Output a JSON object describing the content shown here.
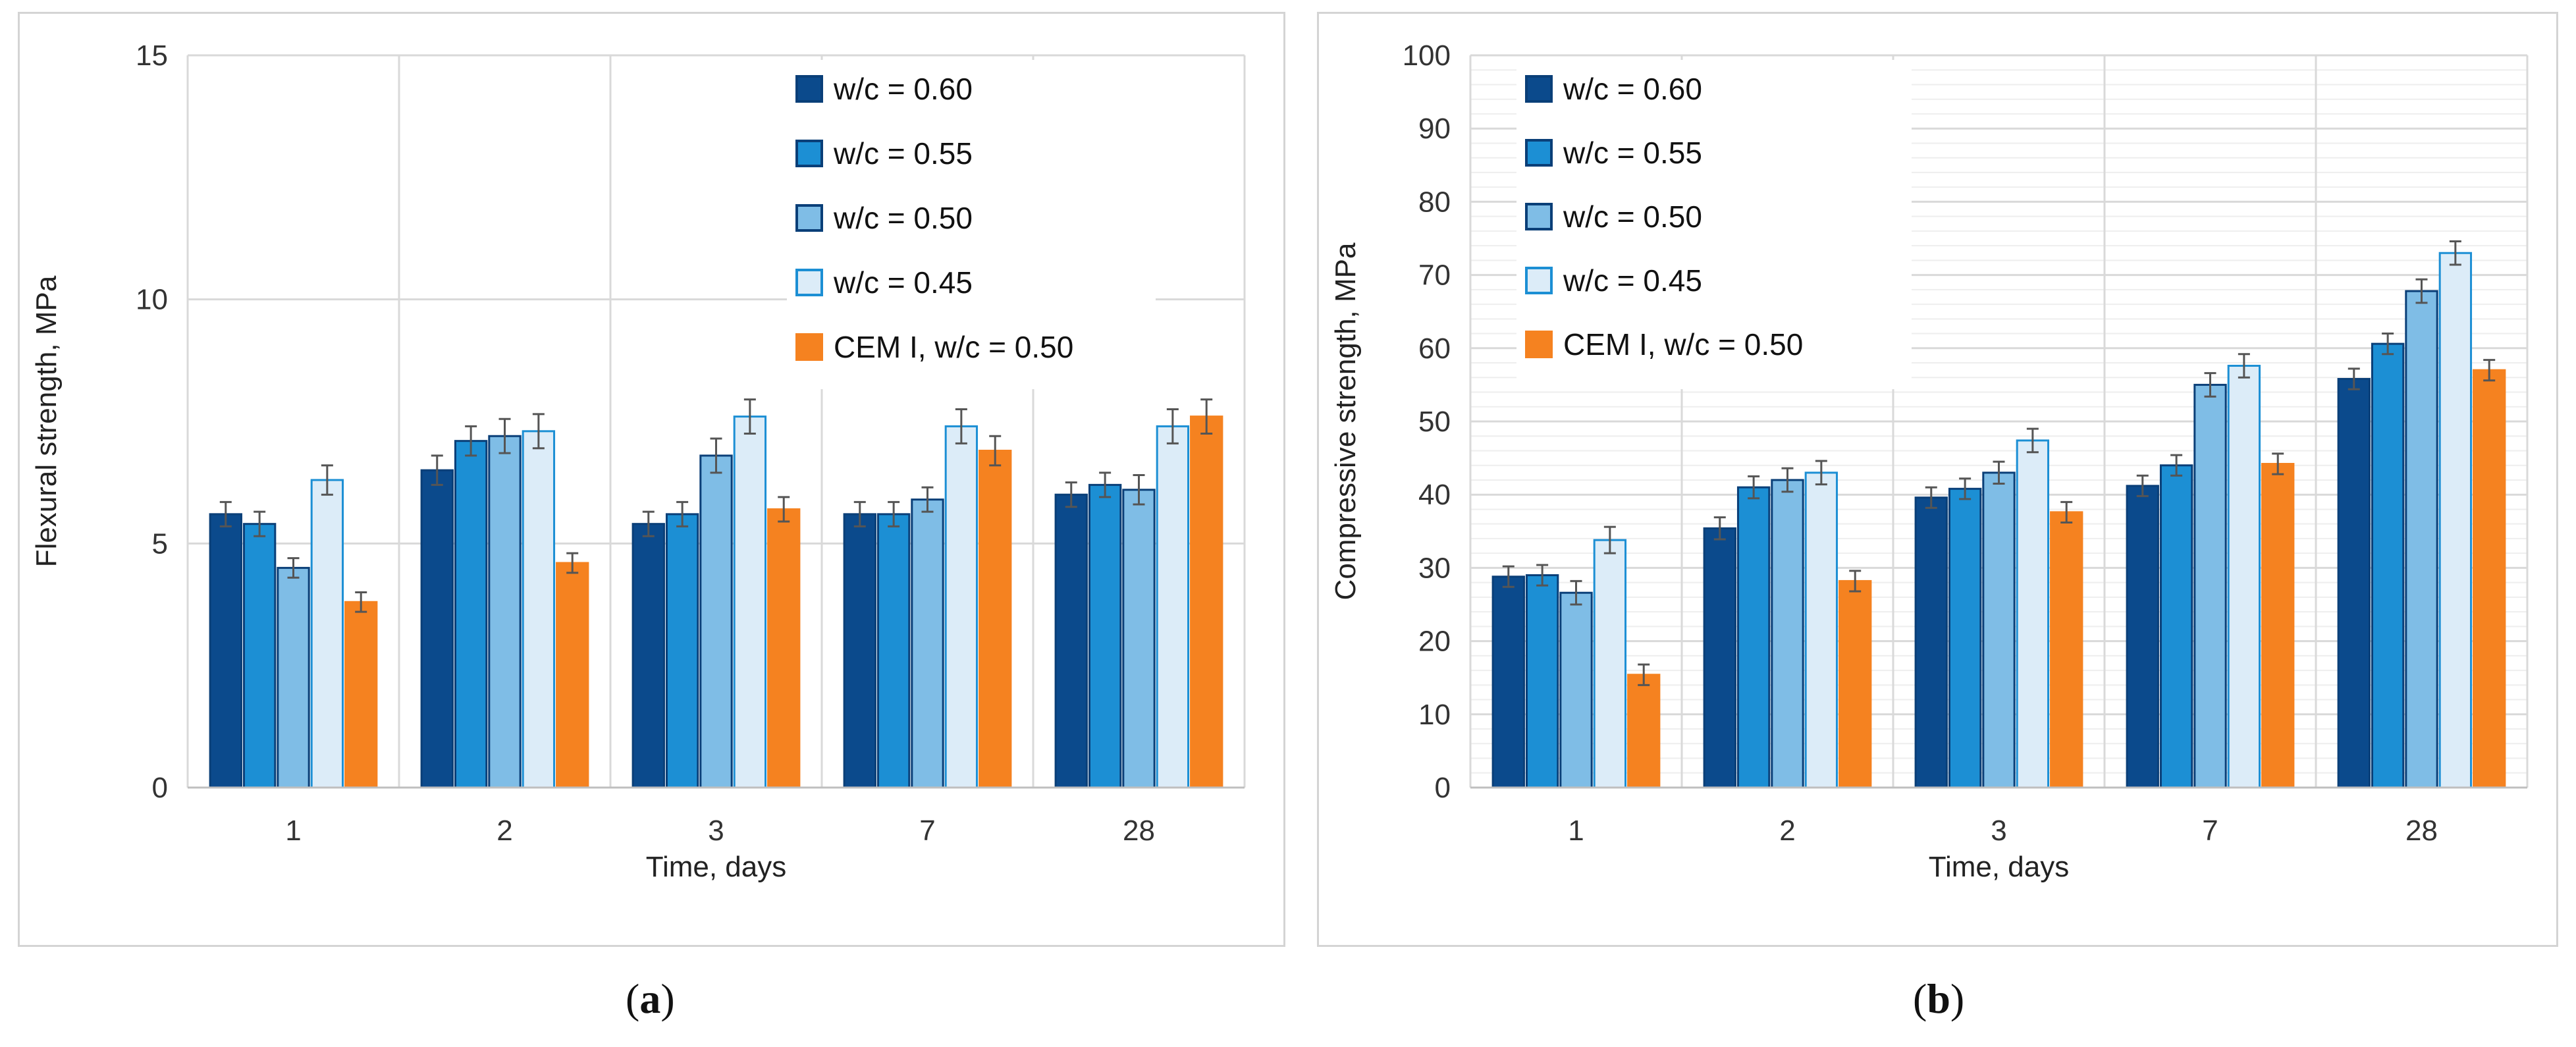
{
  "captions": {
    "a_open": "(",
    "a_letter": "a",
    "a_close": ")",
    "b_open": "(",
    "b_letter": "b",
    "b_close": ")"
  },
  "colors": {
    "w060": "#0b4a8c",
    "w055": "#1c8fd4",
    "w050": "#7fbde6",
    "w045": "#dcecf8",
    "cem": "#f58220",
    "grid": "#d9d9d9",
    "error": "#555555"
  },
  "chart_data": [
    {
      "id": "a",
      "type": "bar",
      "title": "",
      "xlabel": "Time, days",
      "ylabel": "Flexural strength, MPa",
      "categories": [
        "1",
        "2",
        "3",
        "7",
        "28"
      ],
      "ylim": [
        0,
        15
      ],
      "yticks": [
        "0",
        "5",
        "10",
        "15"
      ],
      "legend_position": "top-right",
      "series": [
        {
          "name": "w/c = 0.60",
          "color_key": "w060",
          "values": [
            5.6,
            6.5,
            5.4,
            5.6,
            6.0
          ],
          "errors": [
            0.25,
            0.3,
            0.25,
            0.25,
            0.25
          ]
        },
        {
          "name": "w/c = 0.55",
          "color_key": "w055",
          "values": [
            5.4,
            7.1,
            5.6,
            5.6,
            6.2
          ],
          "errors": [
            0.25,
            0.3,
            0.25,
            0.25,
            0.25
          ]
        },
        {
          "name": "w/c = 0.50",
          "color_key": "w050",
          "values": [
            4.5,
            7.2,
            6.8,
            5.9,
            6.1
          ],
          "errors": [
            0.2,
            0.35,
            0.35,
            0.25,
            0.3
          ]
        },
        {
          "name": "w/c = 0.45",
          "color_key": "w045",
          "values": [
            6.3,
            7.3,
            7.6,
            7.4,
            7.4
          ],
          "errors": [
            0.3,
            0.35,
            0.35,
            0.35,
            0.35
          ]
        },
        {
          "name": "CEM I, w/c = 0.50",
          "color_key": "cem",
          "values": [
            3.8,
            4.6,
            5.7,
            6.9,
            7.6
          ],
          "errors": [
            0.2,
            0.2,
            0.25,
            0.3,
            0.35
          ]
        }
      ]
    },
    {
      "id": "b",
      "type": "bar",
      "title": "",
      "xlabel": "Time, days",
      "ylabel": "Compressive strength, MPa",
      "categories": [
        "1",
        "2",
        "3",
        "7",
        "28"
      ],
      "ylim": [
        0,
        100
      ],
      "yticks": [
        "0",
        "10",
        "20",
        "30",
        "40",
        "50",
        "60",
        "70",
        "80",
        "90",
        "100"
      ],
      "legend_position": "top-left",
      "series": [
        {
          "name": "w/c = 0.60",
          "color_key": "w060",
          "values": [
            28.8,
            35.4,
            39.6,
            41.2,
            55.8
          ],
          "errors": [
            1.4,
            1.5,
            1.4,
            1.4,
            1.4
          ]
        },
        {
          "name": "w/c = 0.55",
          "color_key": "w055",
          "values": [
            29.0,
            41.0,
            40.8,
            44.0,
            60.6
          ],
          "errors": [
            1.4,
            1.5,
            1.4,
            1.4,
            1.4
          ]
        },
        {
          "name": "w/c = 0.50",
          "color_key": "w050",
          "values": [
            26.6,
            42.0,
            43.0,
            55.0,
            67.8
          ],
          "errors": [
            1.6,
            1.6,
            1.5,
            1.6,
            1.6
          ]
        },
        {
          "name": "w/c = 0.45",
          "color_key": "w045",
          "values": [
            33.8,
            43.0,
            47.4,
            57.6,
            73.0
          ],
          "errors": [
            1.8,
            1.6,
            1.6,
            1.6,
            1.6
          ]
        },
        {
          "name": "CEM I, w/c = 0.50",
          "color_key": "cem",
          "values": [
            15.4,
            28.2,
            37.6,
            44.2,
            57.0
          ],
          "errors": [
            1.4,
            1.4,
            1.4,
            1.4,
            1.4
          ]
        }
      ]
    }
  ]
}
